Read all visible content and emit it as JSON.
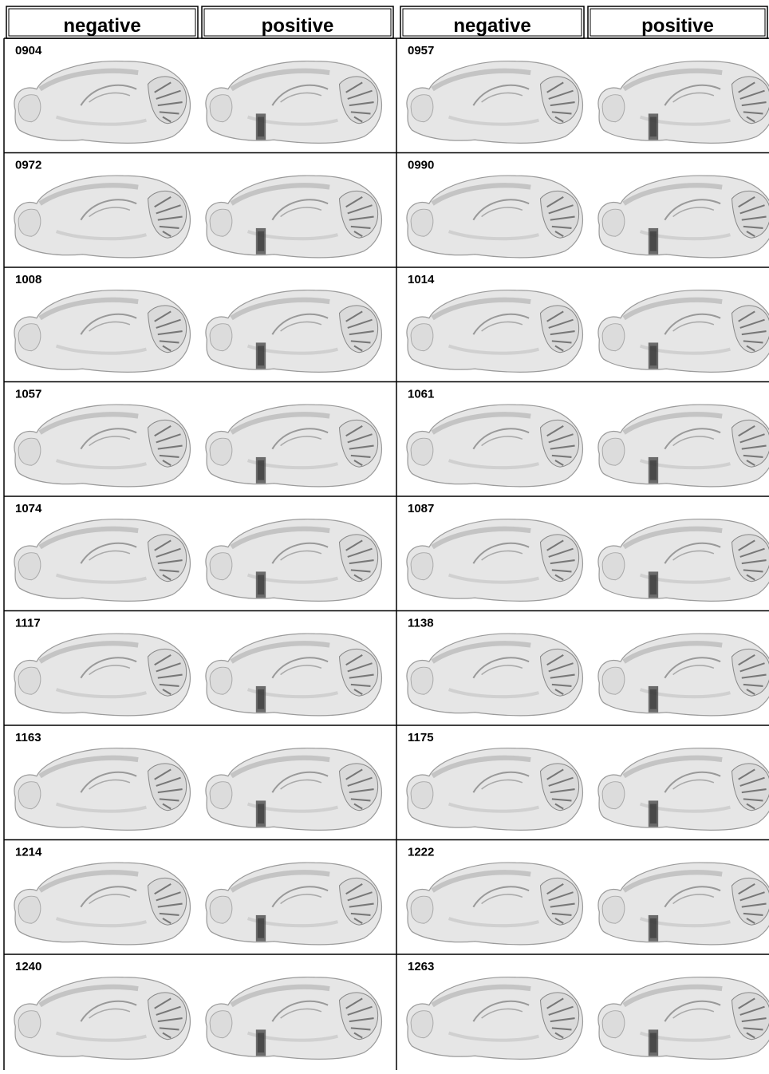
{
  "header": [
    "negative",
    "positive",
    "negative",
    "positive"
  ],
  "samples": [
    [
      "0904",
      "0957"
    ],
    [
      "0972",
      "0990"
    ],
    [
      "1008",
      "1014"
    ],
    [
      "1057",
      "1061"
    ],
    [
      "1074",
      "1087"
    ],
    [
      "1117",
      "1138"
    ],
    [
      "1163",
      "1175"
    ],
    [
      "1214",
      "1222"
    ],
    [
      "1240",
      "1263"
    ]
  ]
}
